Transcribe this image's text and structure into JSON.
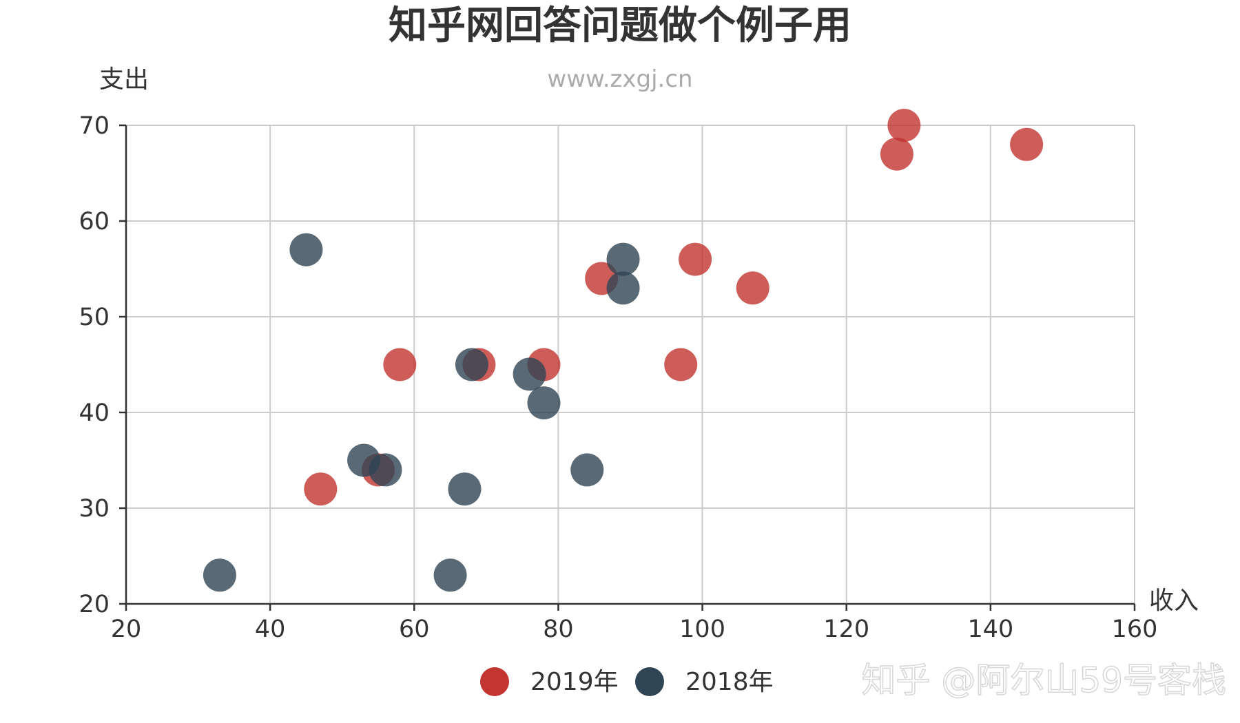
{
  "chart_data": {
    "type": "scatter",
    "title": "知乎网回答问题做个例子用",
    "subtitle": "www.zxgj.cn",
    "xlabel": "收入",
    "ylabel": "支出",
    "xlim": [
      20,
      160
    ],
    "ylim": [
      20,
      70
    ],
    "x_ticks": [
      20,
      40,
      60,
      80,
      100,
      120,
      140,
      160
    ],
    "y_ticks": [
      20,
      30,
      40,
      50,
      60,
      70
    ],
    "grid": true,
    "legend_position": "bottom-center",
    "series": [
      {
        "name": "2019年",
        "color": "#c23531",
        "points": [
          [
            128,
            70
          ],
          [
            127,
            67
          ],
          [
            145,
            68
          ],
          [
            99,
            56
          ],
          [
            86,
            54
          ],
          [
            107,
            53
          ],
          [
            58,
            45
          ],
          [
            69,
            45
          ],
          [
            78,
            45
          ],
          [
            97,
            45
          ],
          [
            55,
            34
          ],
          [
            47,
            32
          ]
        ]
      },
      {
        "name": "2018年",
        "color": "#2f4554",
        "points": [
          [
            45,
            57
          ],
          [
            89,
            56
          ],
          [
            89,
            53
          ],
          [
            68,
            45
          ],
          [
            76,
            44
          ],
          [
            78,
            41
          ],
          [
            53,
            35
          ],
          [
            56,
            34
          ],
          [
            84,
            34
          ],
          [
            67,
            32
          ],
          [
            33,
            23
          ],
          [
            65,
            23
          ]
        ]
      }
    ]
  },
  "watermark": "知乎 @阿尔山59号客栈"
}
